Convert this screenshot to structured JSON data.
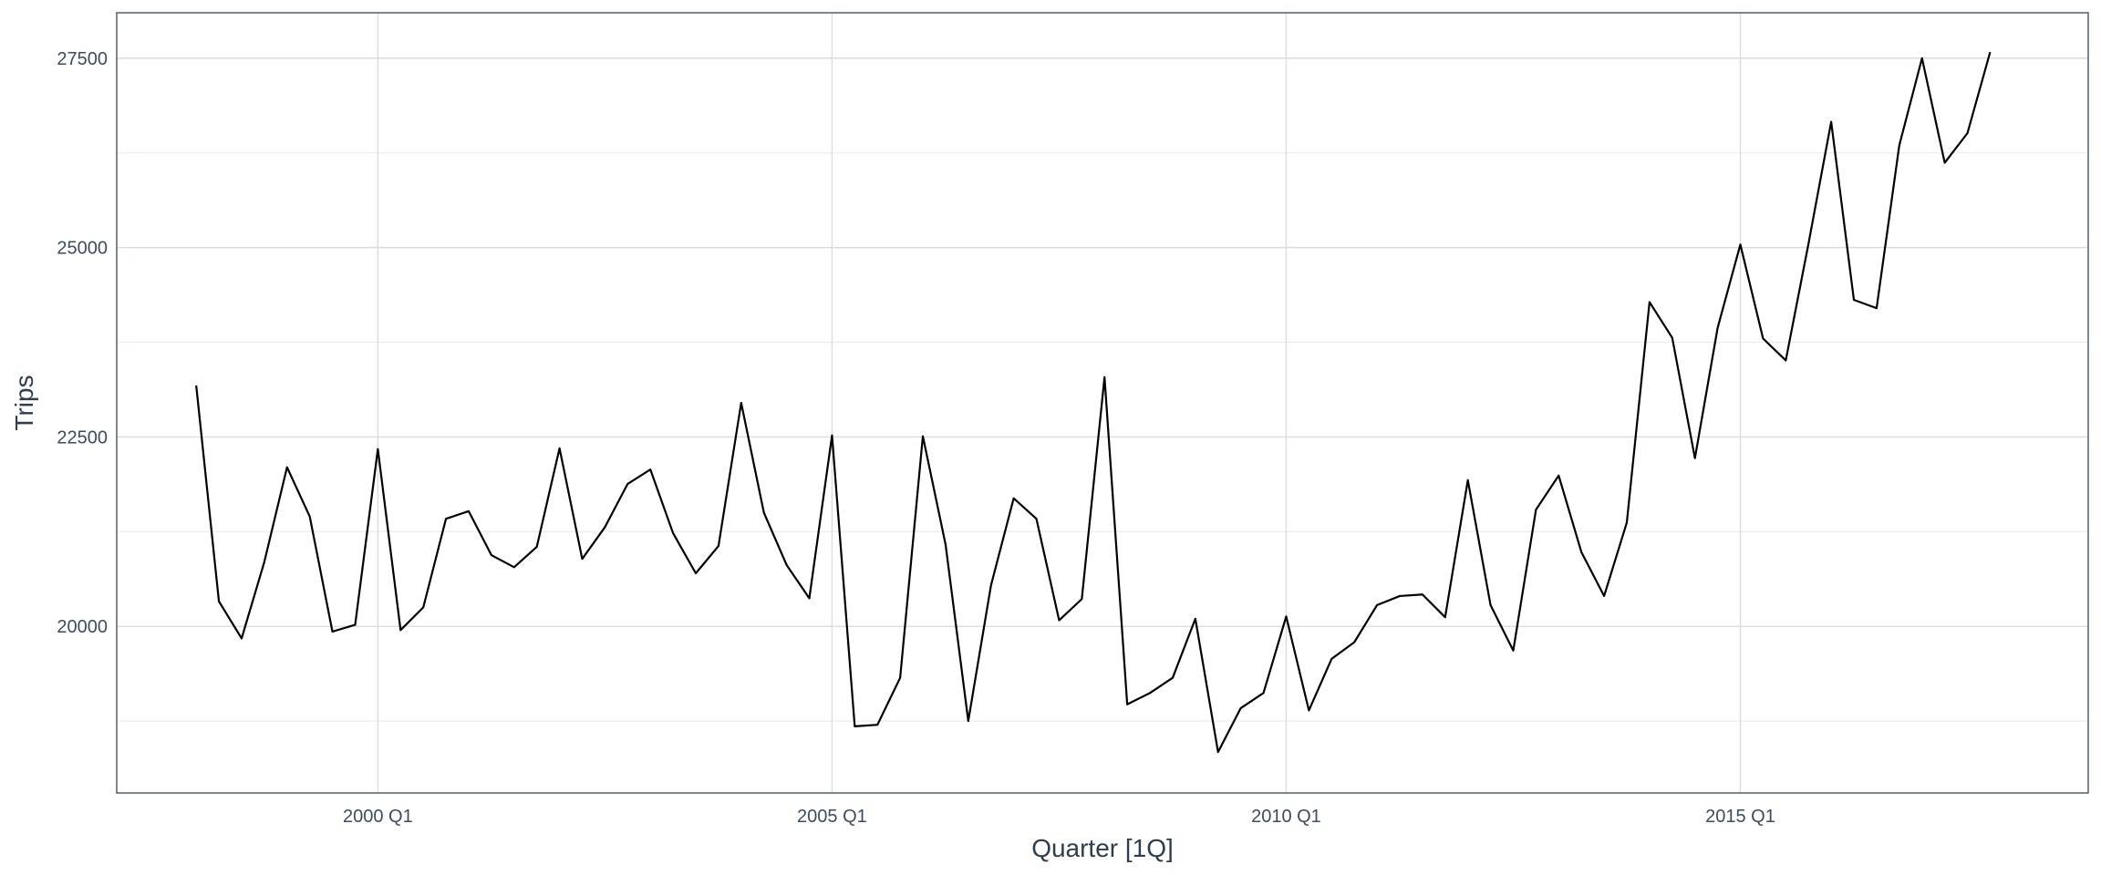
{
  "chart_data": {
    "type": "line",
    "title": "",
    "xlabel": "Quarter [1Q]",
    "ylabel": "Trips",
    "grid": true,
    "legend": "none",
    "colors": {
      "line": "#000000",
      "panel_border": "#44546a",
      "grid_major": "#dcdcdc",
      "grid_minor": "#ebebeb",
      "text": "#3b4d61"
    },
    "x_ticks": [
      {
        "label": "2000 Q1",
        "value": 2000.0
      },
      {
        "label": "2005 Q1",
        "value": 2005.0
      },
      {
        "label": "2010 Q1",
        "value": 2010.0
      },
      {
        "label": "2015 Q1",
        "value": 2015.0
      }
    ],
    "y_ticks": [
      20000,
      22500,
      25000,
      27500
    ],
    "xlim": [
      "1997 Q1",
      "2018 Q4"
    ],
    "ylim": [
      17800,
      28100
    ],
    "series": [
      {
        "x": [
          "1998 Q1",
          "1998 Q2",
          "1998 Q3",
          "1998 Q4",
          "1999 Q1",
          "1999 Q2",
          "1999 Q3",
          "1999 Q4",
          "2000 Q1",
          "2000 Q2",
          "2000 Q3",
          "2000 Q4",
          "2001 Q1",
          "2001 Q2",
          "2001 Q3",
          "2001 Q4",
          "2002 Q1",
          "2002 Q2",
          "2002 Q3",
          "2002 Q4",
          "2003 Q1",
          "2003 Q2",
          "2003 Q3",
          "2003 Q4",
          "2004 Q1",
          "2004 Q2",
          "2004 Q3",
          "2004 Q4",
          "2005 Q1",
          "2005 Q2",
          "2005 Q3",
          "2005 Q4",
          "2006 Q1",
          "2006 Q2",
          "2006 Q3",
          "2006 Q4",
          "2007 Q1",
          "2007 Q2",
          "2007 Q3",
          "2007 Q4",
          "2008 Q1",
          "2008 Q2",
          "2008 Q3",
          "2008 Q4",
          "2009 Q1",
          "2009 Q2",
          "2009 Q3",
          "2009 Q4",
          "2010 Q1",
          "2010 Q2",
          "2010 Q3",
          "2010 Q4",
          "2011 Q1",
          "2011 Q2",
          "2011 Q3",
          "2011 Q4",
          "2012 Q1",
          "2012 Q2",
          "2012 Q3",
          "2012 Q4",
          "2013 Q1",
          "2013 Q2",
          "2013 Q3",
          "2013 Q4",
          "2014 Q1",
          "2014 Q2",
          "2014 Q3",
          "2014 Q4",
          "2015 Q1",
          "2015 Q2",
          "2015 Q3",
          "2015 Q4",
          "2016 Q1",
          "2016 Q2",
          "2016 Q3",
          "2016 Q4",
          "2017 Q1",
          "2017 Q2",
          "2017 Q3",
          "2017 Q4"
        ],
        "values": [
          23180,
          20330,
          19840,
          20850,
          22100,
          21450,
          19930,
          20020,
          22340,
          19950,
          20250,
          21420,
          21520,
          20940,
          20780,
          21050,
          22350,
          20890,
          21310,
          21880,
          22070,
          21230,
          20700,
          21060,
          22950,
          21500,
          20810,
          20370,
          22520,
          18680,
          18700,
          19320,
          22510,
          21080,
          18750,
          20540,
          21690,
          21420,
          20080,
          20360,
          23290,
          18970,
          19120,
          19320,
          20100,
          18340,
          18920,
          19120,
          20130,
          18890,
          19570,
          19790,
          20280,
          20400,
          20420,
          20120,
          21930,
          20280,
          19680,
          21540,
          21990,
          20980,
          20400,
          21370,
          24280,
          23810,
          22220,
          23940,
          25040,
          23800,
          23510,
          25050,
          26660,
          24310,
          24200,
          26350,
          27500,
          26120,
          26510,
          27580
        ]
      }
    ]
  }
}
